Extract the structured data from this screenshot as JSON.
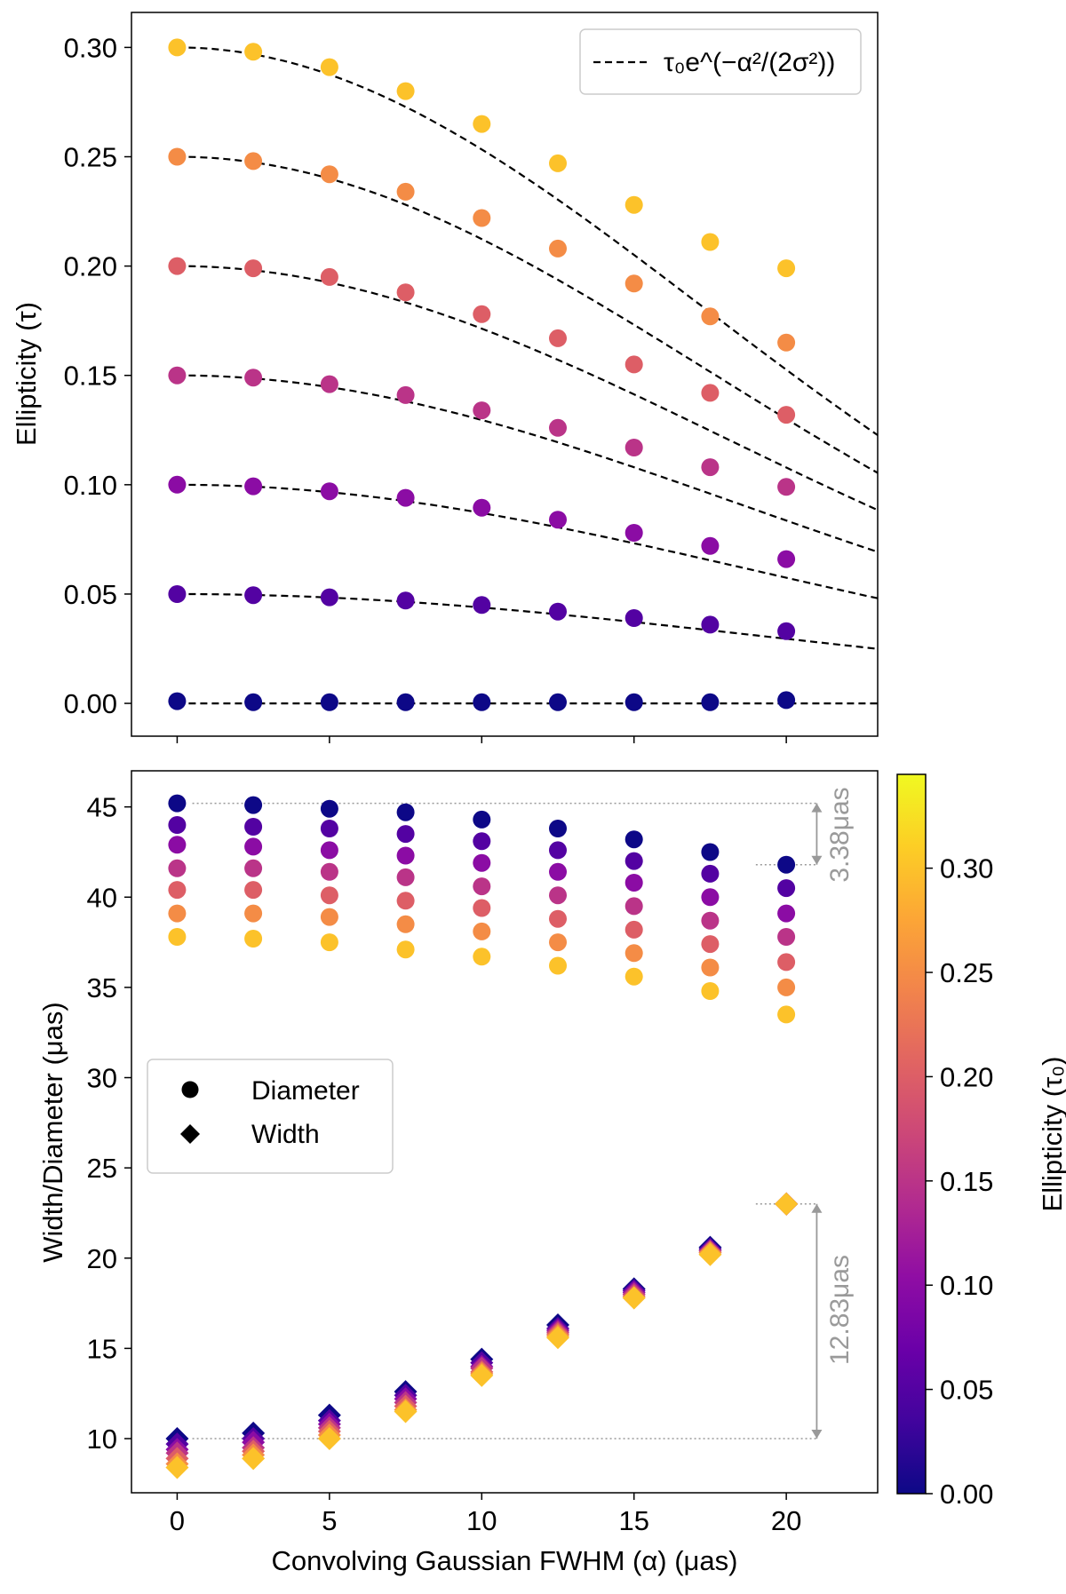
{
  "chart_data": [
    {
      "type": "scatter",
      "panel": "top",
      "ylabel": "Ellipticity (τ)",
      "xlim": [
        -1.5,
        23
      ],
      "ylim": [
        -0.015,
        0.316
      ],
      "x": [
        0,
        2.5,
        5,
        7.5,
        10,
        12.5,
        15,
        17.5,
        20
      ],
      "xticks": [
        0,
        5,
        10,
        15,
        20
      ],
      "yticks": [
        "0.00",
        "0.05",
        "0.10",
        "0.15",
        "0.20",
        "0.25",
        "0.30"
      ],
      "legend": "τ₀e^(−α²/(2σ²))",
      "legend_position": "top-right",
      "series": [
        {
          "tau0": 0.0,
          "sigma": 50,
          "values": [
            0.001,
            0.0005,
            0.0005,
            0.0005,
            0.0005,
            0.0005,
            0.0005,
            0.0005,
            0.0015
          ]
        },
        {
          "tau0": 0.05,
          "sigma": 19.5,
          "values": [
            0.05,
            0.0495,
            0.0485,
            0.047,
            0.045,
            0.042,
            0.039,
            0.036,
            0.033
          ]
        },
        {
          "tau0": 0.1,
          "sigma": 19.0,
          "values": [
            0.1,
            0.0993,
            0.097,
            0.094,
            0.0895,
            0.084,
            0.078,
            0.072,
            0.066
          ]
        },
        {
          "tau0": 0.15,
          "sigma": 18.5,
          "values": [
            0.15,
            0.149,
            0.146,
            0.141,
            0.134,
            0.126,
            0.117,
            0.108,
            0.099
          ]
        },
        {
          "tau0": 0.2,
          "sigma": 18.0,
          "values": [
            0.2,
            0.199,
            0.195,
            0.188,
            0.178,
            0.167,
            0.155,
            0.142,
            0.132
          ]
        },
        {
          "tau0": 0.25,
          "sigma": 17.5,
          "values": [
            0.25,
            0.248,
            0.242,
            0.234,
            0.222,
            0.208,
            0.192,
            0.177,
            0.165
          ]
        },
        {
          "tau0": 0.3,
          "sigma": 17.2,
          "values": [
            0.3,
            0.298,
            0.291,
            0.28,
            0.265,
            0.247,
            0.228,
            0.211,
            0.199
          ]
        }
      ]
    },
    {
      "type": "scatter",
      "panel": "bottom",
      "xlabel": "Convolving Gaussian FWHM (α) (μas)",
      "ylabel": "Width/Diameter (μas)",
      "xlim": [
        -1.5,
        23
      ],
      "ylim": [
        7,
        47
      ],
      "x": [
        0,
        2.5,
        5,
        7.5,
        10,
        12.5,
        15,
        17.5,
        20
      ],
      "xticks": [
        "0",
        "5",
        "10",
        "15",
        "20"
      ],
      "yticks": [
        "10",
        "15",
        "20",
        "25",
        "30",
        "35",
        "40",
        "45"
      ],
      "legend": [
        "Diameter",
        "Width"
      ],
      "legend_position": "center-left",
      "diameter_series": [
        {
          "tau0": 0.0,
          "values": [
            45.2,
            45.1,
            44.9,
            44.7,
            44.3,
            43.8,
            43.2,
            42.5,
            41.8
          ]
        },
        {
          "tau0": 0.05,
          "values": [
            44.0,
            43.9,
            43.8,
            43.5,
            43.1,
            42.6,
            42.0,
            41.3,
            40.5
          ]
        },
        {
          "tau0": 0.1,
          "values": [
            42.9,
            42.8,
            42.6,
            42.3,
            41.9,
            41.4,
            40.8,
            40.0,
            39.1
          ]
        },
        {
          "tau0": 0.15,
          "values": [
            41.6,
            41.6,
            41.4,
            41.1,
            40.6,
            40.1,
            39.5,
            38.7,
            37.8
          ]
        },
        {
          "tau0": 0.2,
          "values": [
            40.4,
            40.4,
            40.1,
            39.8,
            39.4,
            38.8,
            38.2,
            37.4,
            36.4
          ]
        },
        {
          "tau0": 0.25,
          "values": [
            39.1,
            39.1,
            38.9,
            38.5,
            38.1,
            37.5,
            36.9,
            36.1,
            35.0
          ]
        },
        {
          "tau0": 0.3,
          "values": [
            37.8,
            37.7,
            37.5,
            37.1,
            36.7,
            36.2,
            35.6,
            34.8,
            33.5
          ]
        }
      ],
      "width_series": [
        {
          "tau0": 0.0,
          "values": [
            10.0,
            10.3,
            11.3,
            12.6,
            14.4,
            16.3,
            18.3,
            20.6,
            23.0
          ]
        },
        {
          "tau0": 0.05,
          "values": [
            9.7,
            10.0,
            11.0,
            12.4,
            14.2,
            16.1,
            18.2,
            20.5,
            23.0
          ]
        },
        {
          "tau0": 0.1,
          "values": [
            9.4,
            9.8,
            10.8,
            12.2,
            14.0,
            16.0,
            18.1,
            20.4,
            23.0
          ]
        },
        {
          "tau0": 0.15,
          "values": [
            9.2,
            9.5,
            10.6,
            12.0,
            13.9,
            15.9,
            18.0,
            20.4,
            23.0
          ]
        },
        {
          "tau0": 0.2,
          "values": [
            8.9,
            9.3,
            10.4,
            11.8,
            13.7,
            15.8,
            17.9,
            20.3,
            23.0
          ]
        },
        {
          "tau0": 0.25,
          "values": [
            8.6,
            9.1,
            10.2,
            11.6,
            13.6,
            15.7,
            17.8,
            20.3,
            23.0
          ]
        },
        {
          "tau0": 0.3,
          "values": [
            8.4,
            8.9,
            10.0,
            11.5,
            13.5,
            15.6,
            17.8,
            20.2,
            23.0
          ]
        }
      ],
      "annotations": [
        {
          "label": "3.38μas",
          "from": 45.2,
          "to": 41.8
        },
        {
          "label": "12.83μas",
          "from": 10.0,
          "to": 22.9
        }
      ],
      "colorbar": {
        "label": "Ellipticity (τ₀)",
        "range": [
          0,
          0.345
        ],
        "ticks": [
          "0.00",
          "0.05",
          "0.10",
          "0.15",
          "0.20",
          "0.25",
          "0.30"
        ],
        "colormap": [
          "#0d0887",
          "#41049d",
          "#6a00a8",
          "#8f0da4",
          "#b12a90",
          "#cc4778",
          "#e16462",
          "#f2844b",
          "#fca636",
          "#fcce25",
          "#f0f921"
        ]
      }
    }
  ]
}
